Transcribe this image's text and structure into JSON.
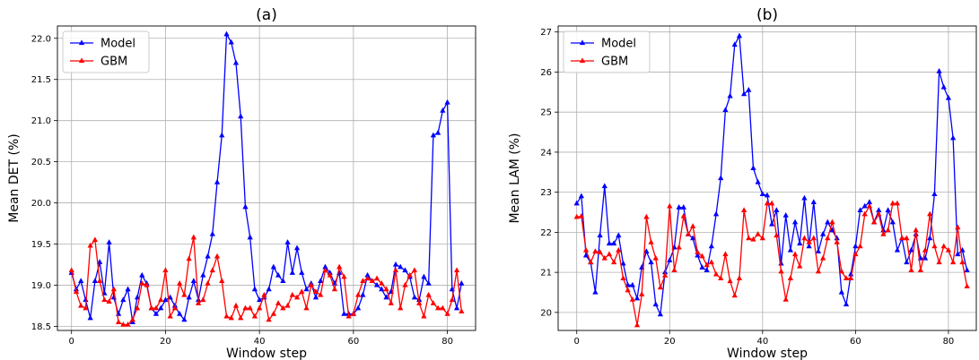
{
  "chart_data": [
    {
      "type": "line",
      "title": "(a)",
      "xlabel": "Window step",
      "ylabel": "Mean DET (%)",
      "xlim": [
        -3,
        86
      ],
      "ylim": [
        18.45,
        22.15
      ],
      "xticks": [
        0,
        20,
        40,
        60,
        80
      ],
      "yticks": [
        18.5,
        19.0,
        19.5,
        20.0,
        20.5,
        21.0,
        21.5,
        22.0
      ],
      "ytick_labels": [
        "18.5",
        "19.0",
        "19.5",
        "20.0",
        "20.5",
        "21.0",
        "21.5",
        "22.0"
      ],
      "grid": true,
      "legend_position": "top-left",
      "series": [
        {
          "name": "Model",
          "color": "#0000ff",
          "marker": "triangle",
          "values": [
            19.15,
            18.95,
            19.05,
            18.82,
            18.6,
            19.05,
            19.28,
            18.9,
            19.52,
            18.85,
            18.65,
            18.82,
            18.95,
            18.55,
            18.85,
            19.12,
            19.02,
            18.72,
            18.65,
            18.72,
            18.82,
            18.85,
            18.75,
            18.65,
            18.58,
            18.85,
            19.05,
            18.82,
            19.12,
            19.35,
            19.62,
            20.25,
            20.82,
            22.05,
            21.95,
            21.7,
            21.05,
            19.95,
            19.58,
            18.95,
            18.82,
            18.85,
            18.95,
            19.22,
            19.12,
            19.05,
            19.52,
            19.15,
            19.45,
            19.15,
            18.95,
            19.02,
            18.85,
            19.05,
            19.22,
            19.15,
            19.02,
            19.15,
            18.65,
            18.65,
            18.65,
            18.72,
            18.88,
            19.12,
            19.05,
            19.0,
            18.95,
            18.85,
            18.92,
            19.25,
            19.22,
            19.18,
            19.1,
            18.85,
            18.82,
            19.1,
            19.02,
            20.82,
            20.85,
            21.12,
            21.22,
            18.95,
            18.72,
            19.02
          ]
        },
        {
          "name": "GBM",
          "color": "#ff0000",
          "marker": "triangle",
          "values": [
            19.18,
            18.92,
            18.75,
            18.72,
            19.48,
            19.55,
            19.05,
            18.82,
            18.8,
            18.95,
            18.55,
            18.52,
            18.52,
            18.58,
            18.72,
            19.02,
            19.0,
            18.72,
            18.72,
            18.82,
            19.18,
            18.62,
            18.72,
            19.02,
            18.88,
            19.32,
            19.58,
            18.78,
            18.82,
            19.02,
            19.18,
            19.35,
            19.05,
            18.62,
            18.6,
            18.75,
            18.6,
            18.72,
            18.72,
            18.62,
            18.72,
            18.88,
            18.58,
            18.65,
            18.78,
            18.72,
            18.75,
            18.88,
            18.85,
            18.92,
            18.72,
            19.0,
            18.92,
            18.88,
            19.18,
            19.12,
            18.95,
            19.22,
            19.1,
            18.62,
            18.65,
            18.88,
            19.05,
            19.08,
            19.05,
            19.08,
            19.02,
            18.95,
            18.78,
            19.18,
            18.72,
            19.0,
            19.12,
            19.18,
            18.78,
            18.62,
            18.88,
            18.78,
            18.72,
            18.72,
            18.65,
            18.82,
            19.18,
            18.68
          ]
        }
      ]
    },
    {
      "type": "line",
      "title": "(b)",
      "xlabel": "Window step",
      "ylabel": "Mean LAM (%)",
      "xlim": [
        -4,
        86
      ],
      "ylim": [
        19.55,
        27.15
      ],
      "xticks": [
        0,
        20,
        40,
        60,
        80
      ],
      "yticks": [
        20,
        21,
        22,
        23,
        24,
        25,
        26,
        27
      ],
      "ytick_labels": [
        "20",
        "21",
        "22",
        "23",
        "24",
        "25",
        "26",
        "27"
      ],
      "grid": true,
      "legend_position": "top-left",
      "series": [
        {
          "name": "Model",
          "color": "#0000ff",
          "marker": "triangle",
          "values": [
            22.72,
            22.9,
            21.42,
            21.25,
            20.5,
            21.92,
            23.15,
            21.72,
            21.72,
            21.92,
            21.22,
            20.68,
            20.68,
            20.35,
            21.12,
            21.52,
            21.25,
            20.2,
            19.95,
            21.0,
            21.3,
            21.62,
            22.62,
            22.62,
            21.95,
            21.85,
            21.42,
            21.12,
            21.05,
            21.65,
            22.45,
            23.35,
            25.05,
            25.4,
            26.68,
            26.9,
            25.45,
            25.55,
            23.6,
            23.25,
            22.95,
            22.92,
            22.2,
            22.55,
            21.22,
            22.42,
            21.55,
            22.25,
            21.72,
            22.85,
            21.65,
            22.75,
            21.52,
            21.95,
            22.25,
            22.05,
            21.85,
            20.5,
            20.2,
            20.95,
            21.65,
            22.55,
            22.65,
            22.75,
            22.25,
            22.55,
            22.05,
            22.55,
            22.25,
            21.55,
            21.85,
            21.25,
            21.55,
            21.95,
            21.35,
            21.35,
            21.85,
            22.95,
            26.02,
            25.62,
            25.35,
            24.35,
            21.45,
            21.55,
            21.05
          ]
        },
        {
          "name": "GBM",
          "color": "#ff0000",
          "marker": "triangle",
          "values": [
            22.38,
            22.4,
            21.55,
            21.25,
            21.52,
            21.5,
            21.35,
            21.45,
            21.25,
            21.55,
            20.85,
            20.55,
            20.32,
            19.68,
            20.45,
            22.38,
            21.75,
            21.35,
            20.62,
            20.92,
            22.65,
            21.05,
            21.62,
            22.4,
            21.95,
            22.15,
            21.5,
            21.4,
            21.18,
            21.25,
            20.95,
            20.85,
            21.45,
            20.78,
            20.42,
            20.85,
            22.55,
            21.85,
            21.82,
            21.95,
            21.85,
            22.72,
            22.72,
            21.92,
            21.02,
            20.32,
            20.85,
            21.45,
            21.15,
            21.85,
            21.75,
            21.85,
            21.02,
            21.35,
            21.85,
            22.25,
            21.75,
            21.02,
            20.85,
            20.85,
            21.45,
            21.65,
            22.45,
            22.65,
            22.25,
            22.45,
            21.95,
            22.05,
            22.72,
            22.72,
            21.85,
            21.85,
            21.05,
            22.05,
            21.05,
            21.55,
            22.45,
            21.65,
            21.25,
            21.65,
            21.55,
            21.25,
            22.12,
            21.25,
            20.65
          ]
        }
      ]
    }
  ]
}
